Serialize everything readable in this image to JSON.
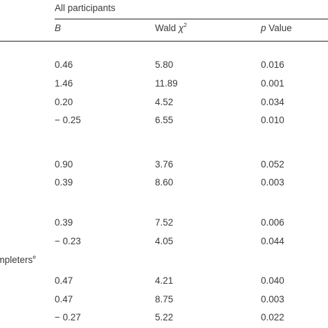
{
  "table": {
    "group_header": "All participants",
    "columns": {
      "b": "B",
      "wald_prefix": "Wald ",
      "wald_chi": "χ",
      "wald_sup": "2",
      "p_italic": "p",
      "p_rest": " Value"
    },
    "section_label": {
      "text": "ompleters",
      "sup": "e"
    },
    "rows": [
      {
        "b": "0.46",
        "wald": "5.80",
        "p": "0.016"
      },
      {
        "b": "1.46",
        "wald": "11.89",
        "p": "0.001"
      },
      {
        "b": "0.20",
        "wald": "4.52",
        "p": "0.034"
      },
      {
        "b": "− 0.25",
        "wald": "6.55",
        "p": "0.010"
      },
      {
        "b": "0.90",
        "wald": "3.76",
        "p": "0.052"
      },
      {
        "b": "0.39",
        "wald": "8.60",
        "p": "0.003"
      },
      {
        "b": "0.39",
        "wald": "7.52",
        "p": "0.006"
      },
      {
        "b": "− 0.23",
        "wald": "4.05",
        "p": "0.044"
      },
      {
        "b": "0.47",
        "wald": "4.21",
        "p": "0.040"
      },
      {
        "b": "0.47",
        "wald": "8.75",
        "p": "0.003"
      },
      {
        "b": "− 0.27",
        "wald": "5.22",
        "p": "0.022"
      }
    ]
  }
}
